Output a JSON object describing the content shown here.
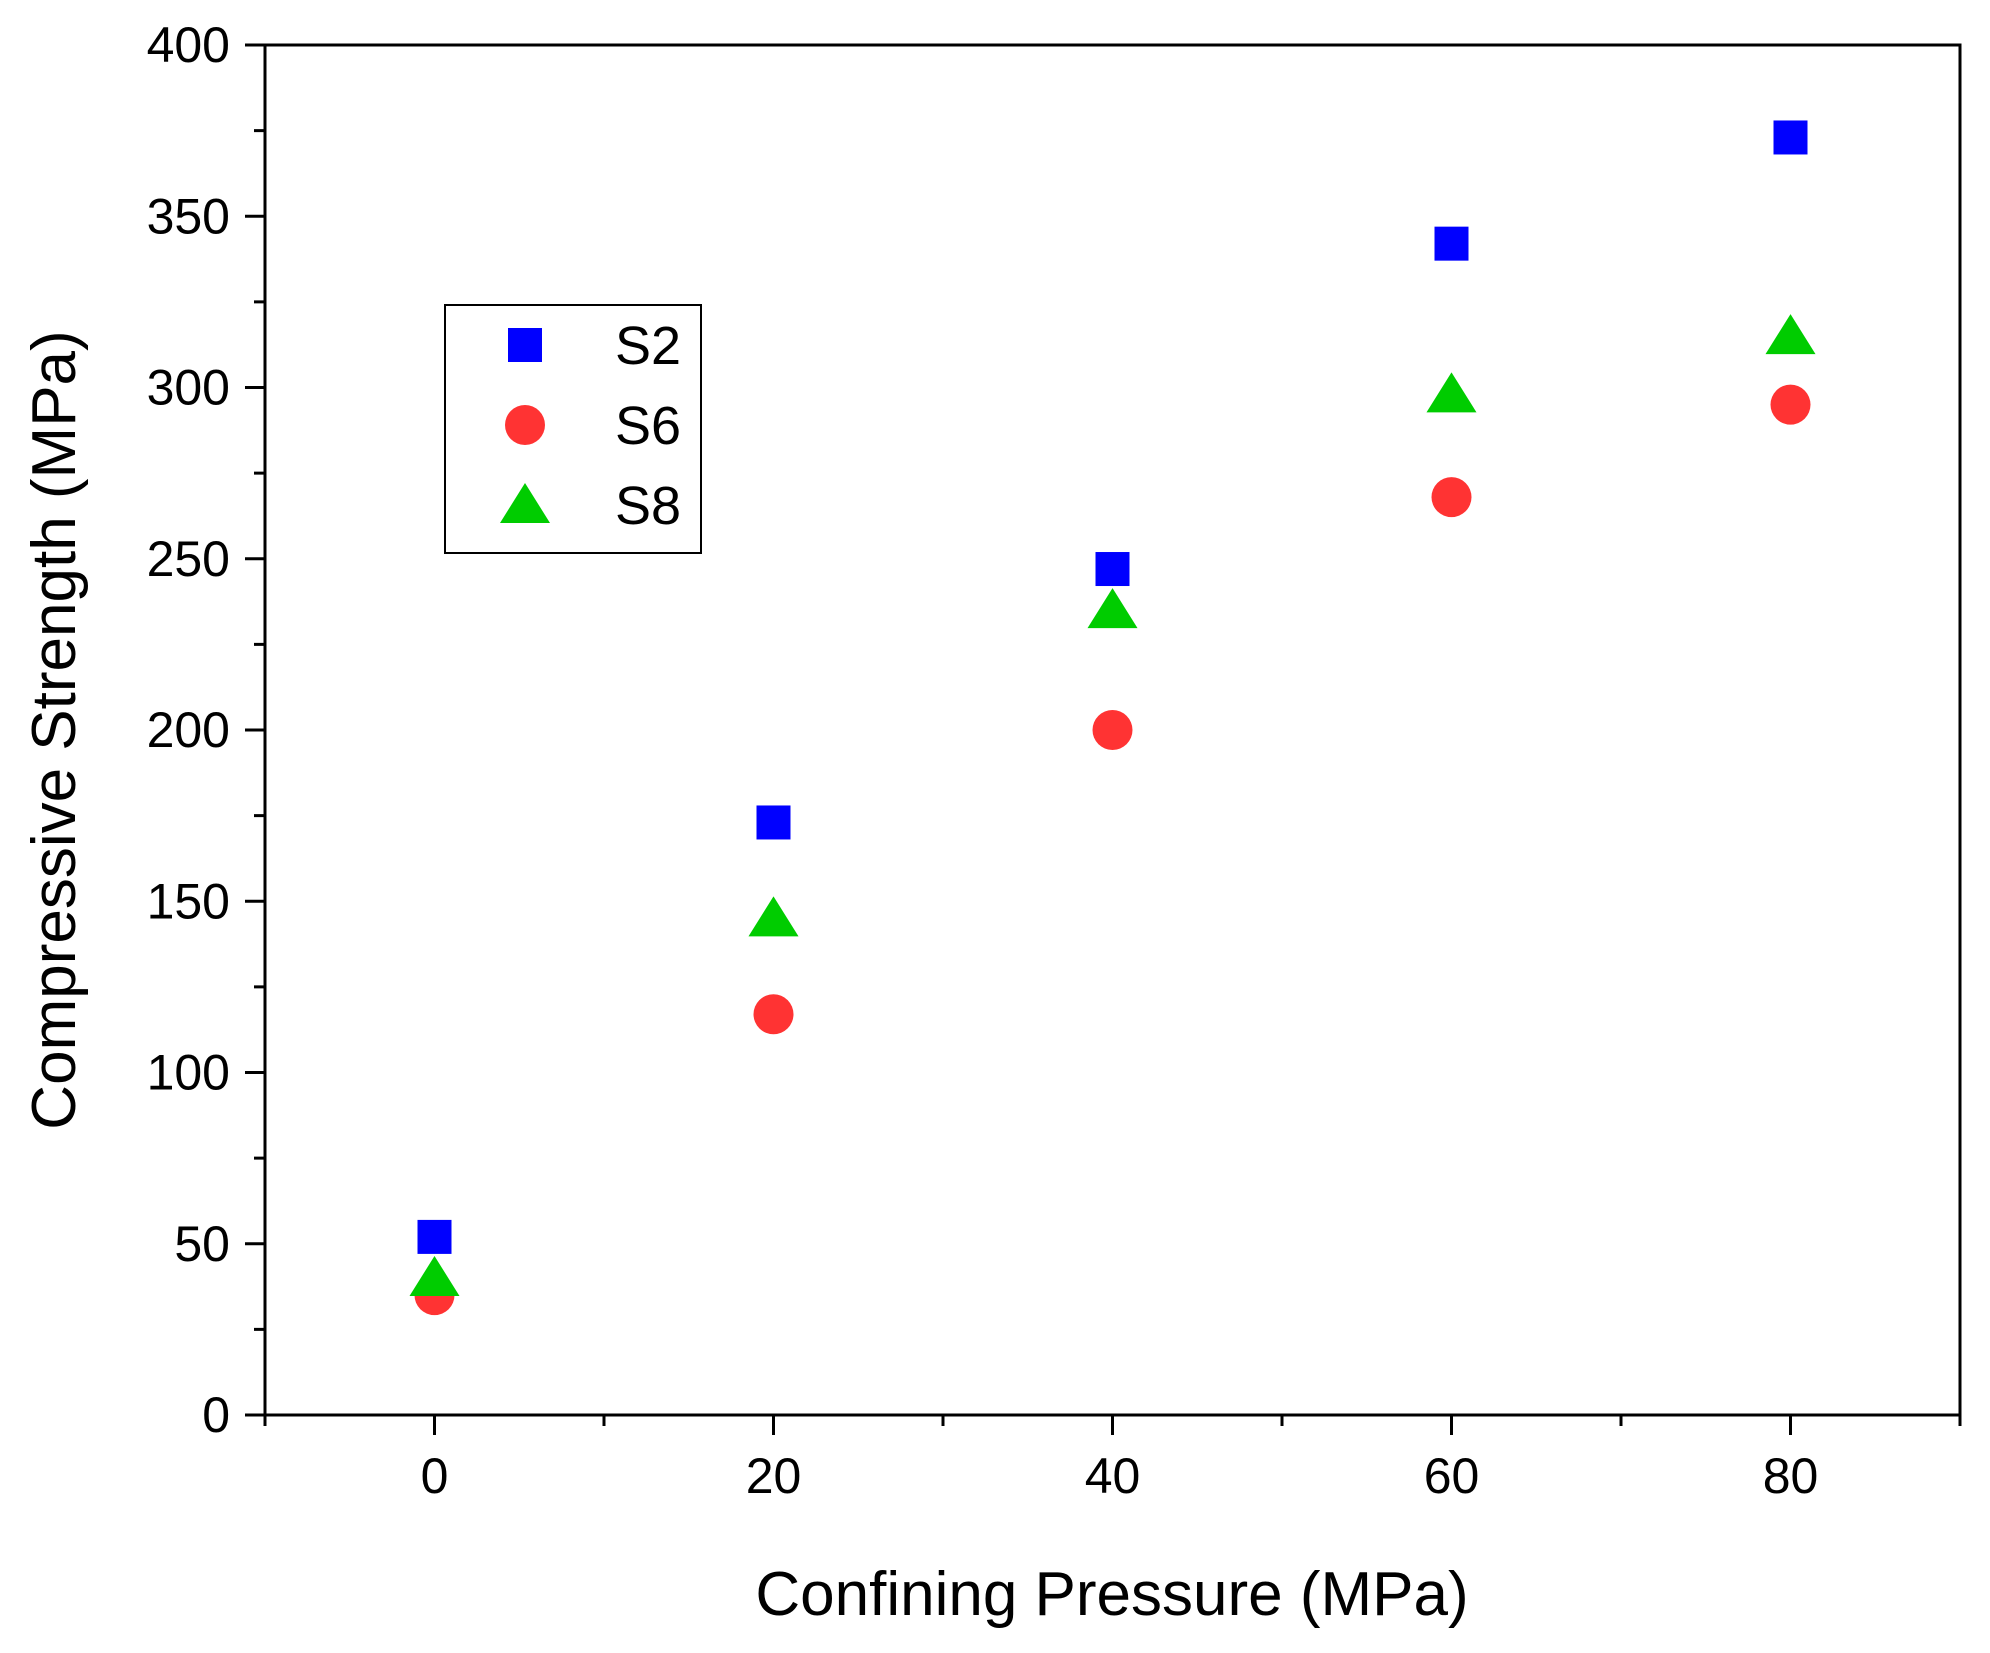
{
  "chart_data": {
    "type": "scatter",
    "title": "",
    "xlabel": "Confining Pressure (MPa)",
    "ylabel": "Compressive Strength (MPa)",
    "xlim": [
      -10,
      90
    ],
    "ylim": [
      0,
      400
    ],
    "xticks": [
      0,
      20,
      40,
      60,
      80
    ],
    "xtick_labels": [
      "0",
      "20",
      "40",
      "60",
      "80"
    ],
    "yticks": [
      0,
      50,
      100,
      150,
      200,
      250,
      300,
      350,
      400
    ],
    "ytick_labels": [
      "0",
      "50",
      "100",
      "150",
      "200",
      "250",
      "300",
      "350",
      "400"
    ],
    "legend_position": "upper-left",
    "grid": false,
    "series": [
      {
        "name": "S2",
        "marker": "square",
        "color": "#0000ff",
        "x": [
          0,
          20,
          40,
          60,
          80
        ],
        "y": [
          52,
          173,
          247,
          342,
          373
        ]
      },
      {
        "name": "S6",
        "marker": "circle",
        "color": "#ff3333",
        "x": [
          0,
          20,
          40,
          60,
          80
        ],
        "y": [
          35,
          117,
          200,
          268,
          295
        ]
      },
      {
        "name": "S8",
        "marker": "triangle",
        "color": "#00cc00",
        "x": [
          0,
          20,
          40,
          60,
          80
        ],
        "y": [
          40,
          145,
          235,
          298,
          315
        ]
      }
    ]
  }
}
